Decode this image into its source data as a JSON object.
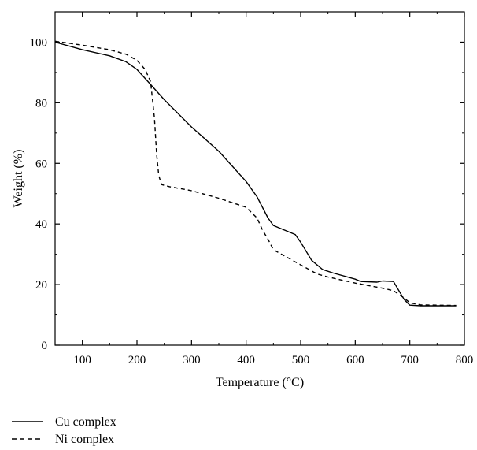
{
  "chart_data": {
    "type": "line",
    "title": "",
    "xlabel": "Temperature (°C)",
    "ylabel": "Weight (%)",
    "xlim": [
      50,
      800
    ],
    "ylim": [
      0,
      110
    ],
    "xticks": [
      100,
      200,
      300,
      400,
      500,
      600,
      700,
      800
    ],
    "yticks": [
      0,
      20,
      40,
      60,
      80,
      100
    ],
    "grid": false,
    "legend_position": "bottom-left",
    "series": [
      {
        "name": "Cu complex",
        "line_style": "solid",
        "color": "#000000",
        "points": [
          [
            50,
            100
          ],
          [
            100,
            97.5
          ],
          [
            150,
            95.5
          ],
          [
            180,
            93.5
          ],
          [
            200,
            91
          ],
          [
            220,
            87
          ],
          [
            250,
            81
          ],
          [
            300,
            72
          ],
          [
            350,
            64
          ],
          [
            400,
            54
          ],
          [
            420,
            49
          ],
          [
            440,
            42
          ],
          [
            450,
            39.5
          ],
          [
            470,
            38
          ],
          [
            490,
            36.5
          ],
          [
            500,
            34
          ],
          [
            520,
            28
          ],
          [
            540,
            25
          ],
          [
            560,
            23.8
          ],
          [
            600,
            21.8
          ],
          [
            610,
            21
          ],
          [
            640,
            20.8
          ],
          [
            650,
            21.2
          ],
          [
            670,
            21
          ],
          [
            680,
            18
          ],
          [
            690,
            15
          ],
          [
            700,
            13.2
          ],
          [
            720,
            13
          ],
          [
            785,
            13
          ]
        ]
      },
      {
        "name": "Ni complex",
        "line_style": "dashed",
        "color": "#000000",
        "points": [
          [
            50,
            100.3
          ],
          [
            100,
            99
          ],
          [
            150,
            97.5
          ],
          [
            180,
            96
          ],
          [
            200,
            94
          ],
          [
            215,
            91
          ],
          [
            225,
            87
          ],
          [
            232,
            75
          ],
          [
            236,
            63
          ],
          [
            240,
            56
          ],
          [
            245,
            53
          ],
          [
            260,
            52.3
          ],
          [
            300,
            51
          ],
          [
            350,
            48.5
          ],
          [
            400,
            45.5
          ],
          [
            420,
            42
          ],
          [
            430,
            38
          ],
          [
            440,
            35
          ],
          [
            450,
            31.5
          ],
          [
            480,
            28.5
          ],
          [
            500,
            26.5
          ],
          [
            530,
            23.5
          ],
          [
            550,
            22.5
          ],
          [
            600,
            20.5
          ],
          [
            650,
            18.8
          ],
          [
            670,
            18
          ],
          [
            690,
            15.5
          ],
          [
            700,
            14
          ],
          [
            720,
            13.3
          ],
          [
            785,
            13.1
          ]
        ]
      }
    ]
  }
}
